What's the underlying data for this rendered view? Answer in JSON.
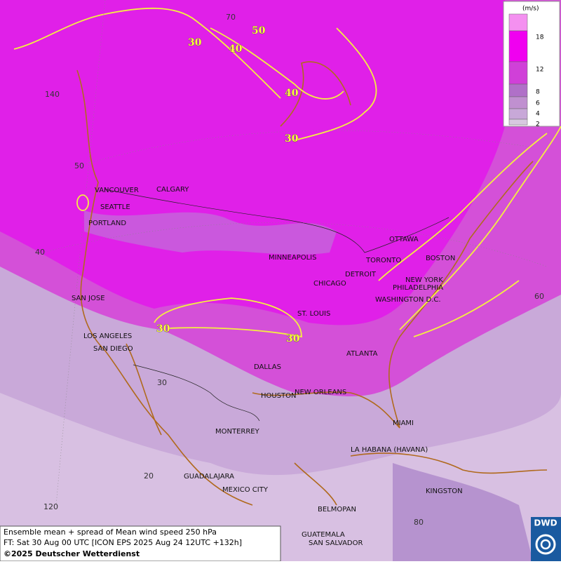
{
  "legend": {
    "unit": "(m/s)",
    "ticks": [
      18,
      12,
      8,
      6,
      4,
      2
    ]
  },
  "cities": [
    "VANCOUVER",
    "CALGARY",
    "SEATTLE",
    "PORTLAND",
    "MINNEAPOLIS",
    "OTTAWA",
    "TORONTO",
    "BOSTON",
    "DETROIT",
    "NEW YORK",
    "CHICAGO",
    "PHILADELPHIA",
    "WASHINGTON D.C.",
    "SAN JOSE",
    "ST. LOUIS",
    "LOS ANGELES",
    "SAN DIEGO",
    "ATLANTA",
    "DALLAS",
    "HOUSTON",
    "NEW ORLEANS",
    "MIAMI",
    "MONTERREY",
    "LA HABANA (HAVANA)",
    "GUADALAJARA",
    "MEXICO CITY",
    "KINGSTON",
    "BELMOPAN",
    "GUATEMALA",
    "SAN SALVADOR"
  ],
  "contour_labels": [
    "30",
    "40",
    "50",
    "40",
    "30",
    "30",
    "30"
  ],
  "grid_labels": [
    "70",
    "140",
    "50",
    "40",
    "30",
    "20",
    "120",
    "80",
    "60"
  ],
  "footer": {
    "line1": "Ensemble mean + spread of Mean wind speed 250 hPa",
    "line2": "FT: Sat 30 Aug 00 UTC [ICON EPS 2025 Aug 24 12UTC +132h]",
    "line3": "©2025 Deutscher Wetterdienst"
  },
  "logo": "DWD"
}
